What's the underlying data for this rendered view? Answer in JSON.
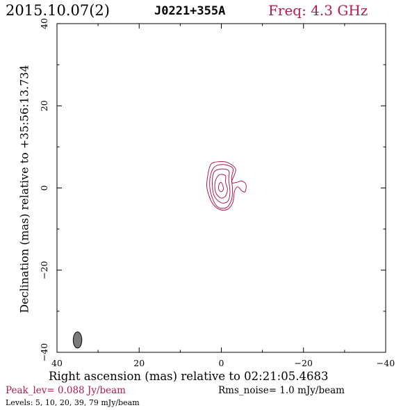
{
  "header": {
    "date": "2015.10.07(2)",
    "source": "J0221+355A",
    "freq": "Freq: 4.3 GHz"
  },
  "axes": {
    "xlabel": "Right ascension (mas) relative to 02:21:05.4683",
    "ylabel": "Declination (mas) relative to +35:56:13.734"
  },
  "footer": {
    "peak": "Peak_lev=  0.088 Jy/beam",
    "rms": "Rms_noise=  1.0 mJy/beam",
    "levels": "Levels:   5,  10,  20,  39,  79 mJy/beam"
  },
  "colors": {
    "contour": "#b01c48",
    "beam_fill": "#7a7a7a",
    "freq_text": "#b01c48"
  },
  "chart_data": {
    "type": "contour",
    "xlim": [
      40,
      -40
    ],
    "ylim": [
      -40,
      40
    ],
    "x_ticks": [
      40,
      20,
      0,
      -20,
      -40
    ],
    "y_ticks": [
      -40,
      -20,
      0,
      20,
      40
    ],
    "x_tick_labels": [
      "40",
      "20",
      "0",
      "−20",
      "−40"
    ],
    "y_tick_labels": [
      "−40",
      "−20",
      "0",
      "20",
      "40"
    ],
    "levels_mJy": [
      5,
      10,
      20,
      39,
      79
    ],
    "peak_Jy_per_beam": 0.088,
    "rms_mJy_per_beam": 1.0,
    "contours": [
      {
        "level_mJy": 5,
        "points": [
          [
            -2.5,
            1.5
          ],
          [
            -3.5,
            4.5
          ],
          [
            -1.5,
            6.2
          ],
          [
            0.5,
            6.4
          ],
          [
            2.5,
            5.8
          ],
          [
            3.3,
            3.0
          ],
          [
            3.5,
            0.0
          ],
          [
            2.3,
            -3.5
          ],
          [
            0.5,
            -5.2
          ],
          [
            -1.5,
            -5.2
          ],
          [
            -2.8,
            -3.5
          ],
          [
            -3.2,
            -0.8
          ],
          [
            -4.0,
            0.3
          ],
          [
            -5.0,
            -0.7
          ],
          [
            -5.8,
            -0.9
          ],
          [
            -6.0,
            0.8
          ],
          [
            -5.0,
            1.7
          ],
          [
            -3.5,
            1.3
          ]
        ]
      },
      {
        "level_mJy": 10,
        "points": [
          [
            -2.5,
            2.5
          ],
          [
            -2.8,
            4.8
          ],
          [
            -0.5,
            5.7
          ],
          [
            1.8,
            5.0
          ],
          [
            2.8,
            2.0
          ],
          [
            2.5,
            -1.5
          ],
          [
            1.0,
            -4.5
          ],
          [
            -1.2,
            -4.8
          ],
          [
            -2.5,
            -2.8
          ],
          [
            -2.7,
            -0.2
          ]
        ]
      },
      {
        "level_mJy": 20,
        "points": [
          [
            -1.8,
            2.0
          ],
          [
            -1.8,
            4.2
          ],
          [
            0.2,
            4.6
          ],
          [
            1.8,
            3.8
          ],
          [
            2.2,
            1.0
          ],
          [
            1.7,
            -2.0
          ],
          [
            0.0,
            -3.6
          ],
          [
            -1.6,
            -3.2
          ],
          [
            -2.1,
            -1.0
          ]
        ]
      },
      {
        "level_mJy": 39,
        "points": [
          [
            -1.0,
            1.5
          ],
          [
            -1.0,
            3.0
          ],
          [
            0.5,
            3.2
          ],
          [
            1.5,
            1.5
          ],
          [
            1.4,
            -1.0
          ],
          [
            0.2,
            -2.4
          ],
          [
            -1.0,
            -2.0
          ],
          [
            -1.5,
            -0.3
          ]
        ]
      },
      {
        "level_mJy": 79,
        "points": [
          [
            -0.3,
            0.8
          ],
          [
            0.1,
            1.4
          ],
          [
            0.6,
            0.7
          ],
          [
            0.6,
            -0.4
          ],
          [
            0.0,
            -0.9
          ],
          [
            -0.5,
            -0.3
          ]
        ]
      }
    ],
    "beam": {
      "x": 35.0,
      "y": -37.0,
      "major_mas": 4.0,
      "minor_mas": 2.0,
      "pa_deg": 0
    }
  }
}
